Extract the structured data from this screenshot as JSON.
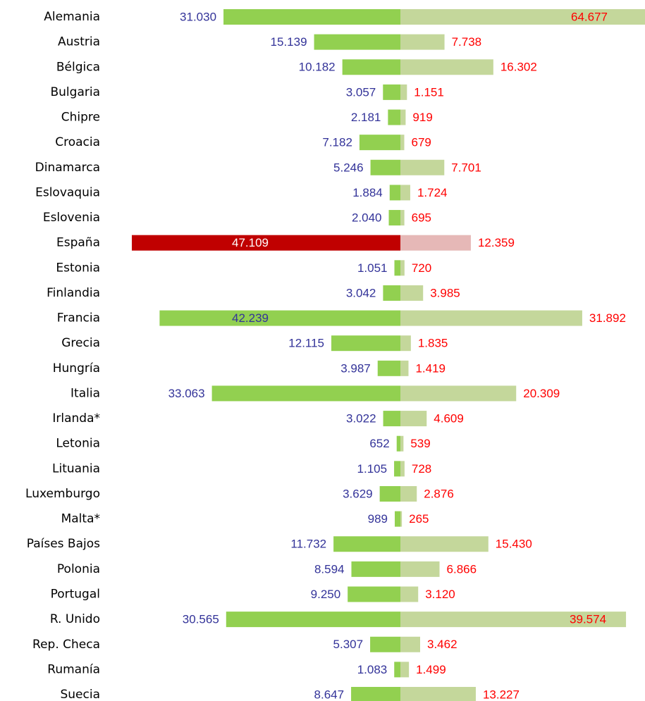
{
  "chart_data": {
    "type": "diverging_bar",
    "categories": [
      "Alemania",
      "Austria",
      "Bélgica",
      "Bulgaria",
      "Chipre",
      "Croacia",
      "Dinamarca",
      "Eslovaquia",
      "Eslovenia",
      "España",
      "Estonia",
      "Finlandia",
      "Francia",
      "Grecia",
      "Hungría",
      "Italia",
      "Irlanda*",
      "Letonia",
      "Lituania",
      "Luxemburgo",
      "Malta*",
      "Países Bajos",
      "Polonia",
      "Portugal",
      "R. Unido",
      "Rep. Checa",
      "Rumanía",
      "Suecia"
    ],
    "series": [
      {
        "side": "left",
        "label_color": "#333399",
        "values": [
          31030,
          15139,
          10182,
          3057,
          2181,
          7182,
          5246,
          1884,
          2040,
          47109,
          1051,
          3042,
          42239,
          12115,
          3987,
          33063,
          3022,
          652,
          1105,
          3629,
          989,
          11732,
          8594,
          9250,
          30565,
          5307,
          1083,
          8647
        ],
        "value_labels": [
          "31.030",
          "15.139",
          "10.182",
          "3.057",
          "2.181",
          "7.182",
          "5.246",
          "1.884",
          "2.040",
          "47.109",
          "1.051",
          "3.042",
          "42.239",
          "12.115",
          "3.987",
          "33.063",
          "3.022",
          "652",
          "1.105",
          "3.629",
          "989",
          "11.732",
          "8.594",
          "9.250",
          "30.565",
          "5.307",
          "1.083",
          "8.647"
        ],
        "colors": [
          "#92d050",
          "#92d050",
          "#92d050",
          "#92d050",
          "#92d050",
          "#92d050",
          "#92d050",
          "#92d050",
          "#92d050",
          "#c00000",
          "#92d050",
          "#92d050",
          "#92d050",
          "#92d050",
          "#92d050",
          "#92d050",
          "#92d050",
          "#92d050",
          "#92d050",
          "#92d050",
          "#92d050",
          "#92d050",
          "#92d050",
          "#92d050",
          "#92d050",
          "#92d050",
          "#92d050",
          "#92d050"
        ]
      },
      {
        "side": "right",
        "label_color": "#ff0000",
        "values": [
          64677,
          7738,
          16302,
          1151,
          919,
          679,
          7701,
          1724,
          695,
          12359,
          720,
          3985,
          31892,
          1835,
          1419,
          20309,
          4609,
          539,
          728,
          2876,
          265,
          15430,
          6866,
          3120,
          39574,
          3462,
          1499,
          13227
        ],
        "value_labels": [
          "64.677",
          "7.738",
          "16.302",
          "1.151",
          "919",
          "679",
          "7.701",
          "1.724",
          "695",
          "12.359",
          "720",
          "3.985",
          "31.892",
          "1.835",
          "1.419",
          "20.309",
          "4.609",
          "539",
          "728",
          "2.876",
          "265",
          "15.430",
          "6.866",
          "3.120",
          "39.574",
          "3.462",
          "1.499",
          "13.227"
        ],
        "colors": [
          "#c4d79b",
          "#c4d79b",
          "#c4d79b",
          "#c4d79b",
          "#c4d79b",
          "#c4d79b",
          "#c4d79b",
          "#c4d79b",
          "#c4d79b",
          "#e6b8b7",
          "#c4d79b",
          "#c4d79b",
          "#c4d79b",
          "#c4d79b",
          "#c4d79b",
          "#c4d79b",
          "#c4d79b",
          "#c4d79b",
          "#c4d79b",
          "#c4d79b",
          "#c4d79b",
          "#c4d79b",
          "#c4d79b",
          "#c4d79b",
          "#c4d79b",
          "#c4d79b",
          "#c4d79b",
          "#c4d79b"
        ]
      }
    ]
  }
}
